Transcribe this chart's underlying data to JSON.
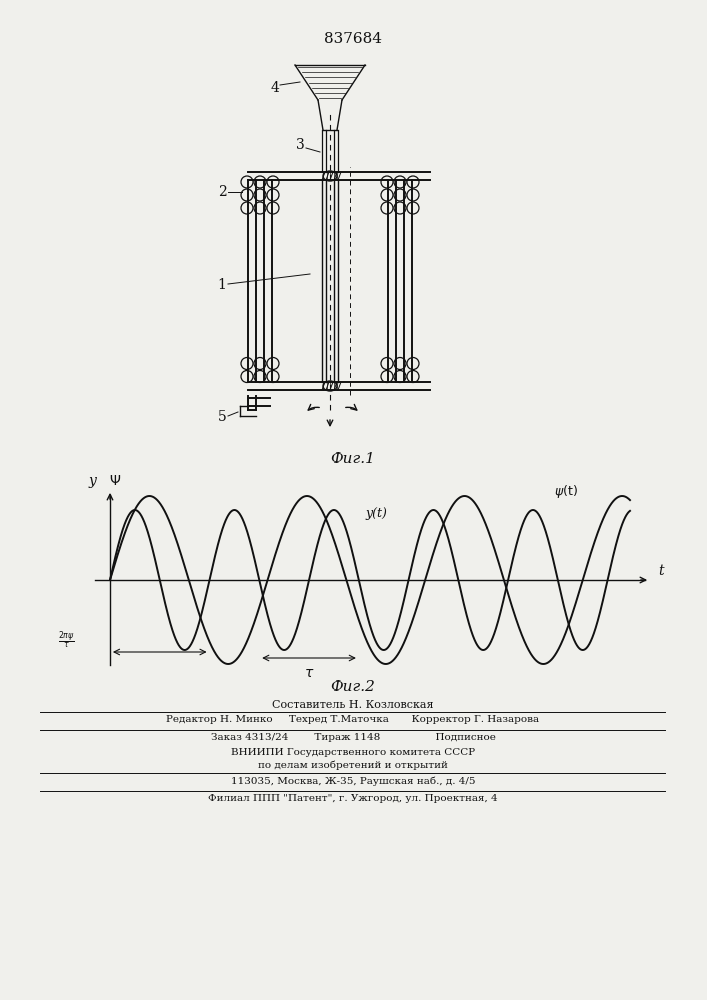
{
  "patent_number": "837684",
  "fig1_label": "Фиг.1",
  "fig2_label": "Фиг.2",
  "bg_color": "#f0f0ec",
  "line_color": "#111111",
  "label1": "1",
  "label2": "2",
  "label3": "3",
  "label4": "4",
  "label5": "5",
  "footer_lines": [
    "Составитель Н. Козловская",
    "Редактор Н. Минко     Техред Т.Маточка       Корректор Г. Назарова",
    "Заказ 4313/24        Тираж 1148                 Подписное",
    "ВНИИПИ Государственного комитета СССР",
    "по делам изобретений и открытий",
    "113035, Москва, Ж-35, Раушская наб., д. 4/5",
    "Филиал ППП \"Патент\", г. Ужгород, ул. Проектная, 4"
  ]
}
